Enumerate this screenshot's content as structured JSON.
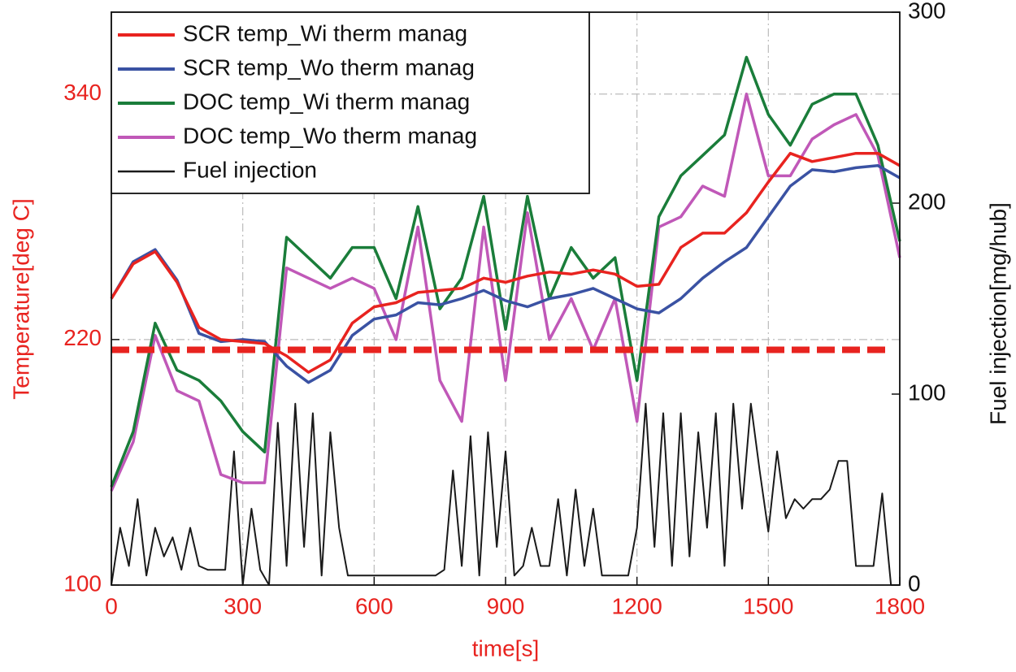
{
  "chart_data": {
    "type": "line",
    "x_label": "time[s]",
    "y_label": "Temperature[deg C]",
    "y2_label": "Fuel injection[mg/hub]",
    "xlim": [
      0,
      1800
    ],
    "xticks": [
      0,
      300,
      600,
      900,
      1200,
      1500,
      1800
    ],
    "ylim": [
      100,
      380
    ],
    "yticks": [
      100,
      220,
      340
    ],
    "y2lim": [
      0,
      300
    ],
    "y2ticks": [
      0,
      100,
      200,
      300
    ],
    "grid": true,
    "legend": "upper left",
    "reference_line": {
      "value": 215,
      "color": "#e8231f"
    },
    "x": [
      0,
      50,
      100,
      150,
      200,
      250,
      300,
      350,
      400,
      450,
      500,
      550,
      600,
      650,
      700,
      750,
      800,
      850,
      900,
      950,
      1000,
      1050,
      1100,
      1150,
      1200,
      1250,
      1300,
      1350,
      1400,
      1450,
      1500,
      1550,
      1600,
      1650,
      1700,
      1750,
      1800
    ],
    "series": [
      {
        "name": "SCR temp_Wi therm manag",
        "color": "#e8231f",
        "values": [
          240,
          257,
          263,
          248,
          226,
          220,
          219,
          218,
          212,
          204,
          210,
          228,
          236,
          238,
          243,
          244,
          245,
          250,
          248,
          251,
          253,
          252,
          254,
          252,
          246,
          247,
          265,
          272,
          272,
          282,
          297,
          311,
          307,
          309,
          311,
          311,
          305
        ]
      },
      {
        "name": "SCR temp_Wo therm manag",
        "color": "#3a52a3",
        "values": [
          240,
          258,
          264,
          249,
          223,
          219,
          220,
          219,
          207,
          199,
          205,
          222,
          230,
          232,
          238,
          237,
          240,
          244,
          239,
          236,
          240,
          242,
          245,
          240,
          235,
          233,
          240,
          250,
          258,
          265,
          280,
          295,
          303,
          302,
          304,
          305,
          299
        ]
      },
      {
        "name": "DOC temp_Wi therm manag",
        "color": "#1a7d3a",
        "values": [
          148,
          175,
          228,
          205,
          200,
          190,
          175,
          165,
          270,
          260,
          250,
          265,
          265,
          240,
          285,
          235,
          250,
          290,
          225,
          290,
          240,
          265,
          250,
          260,
          200,
          280,
          300,
          310,
          320,
          358,
          330,
          315,
          335,
          340,
          340,
          315,
          268
        ]
      },
      {
        "name": "DOC temp_Wo therm manag",
        "color": "#c058b8",
        "values": [
          146,
          170,
          222,
          195,
          190,
          154,
          150,
          150,
          255,
          250,
          245,
          250,
          245,
          220,
          275,
          200,
          180,
          275,
          200,
          282,
          220,
          240,
          215,
          240,
          180,
          275,
          280,
          295,
          290,
          340,
          300,
          300,
          318,
          325,
          330,
          310,
          260
        ]
      },
      {
        "name": "Fuel injection",
        "color": "#1a1a1a",
        "axis": "y2",
        "x": [
          0,
          20,
          40,
          60,
          80,
          100,
          120,
          140,
          160,
          180,
          200,
          220,
          240,
          260,
          280,
          300,
          320,
          340,
          360,
          380,
          400,
          420,
          440,
          460,
          480,
          500,
          520,
          540,
          560,
          580,
          600,
          620,
          640,
          660,
          680,
          700,
          720,
          740,
          760,
          780,
          800,
          820,
          840,
          860,
          880,
          900,
          920,
          940,
          960,
          980,
          1000,
          1020,
          1040,
          1060,
          1080,
          1100,
          1120,
          1140,
          1160,
          1180,
          1200,
          1220,
          1240,
          1260,
          1280,
          1300,
          1320,
          1340,
          1360,
          1380,
          1400,
          1420,
          1440,
          1460,
          1480,
          1500,
          1520,
          1540,
          1560,
          1580,
          1600,
          1620,
          1640,
          1660,
          1680,
          1700,
          1720,
          1740,
          1760,
          1780,
          1800
        ],
        "values": [
          0,
          30,
          10,
          45,
          5,
          30,
          15,
          25,
          8,
          30,
          10,
          8,
          8,
          8,
          70,
          0,
          40,
          8,
          0,
          85,
          10,
          95,
          20,
          90,
          5,
          80,
          30,
          5,
          5,
          5,
          5,
          5,
          5,
          5,
          5,
          5,
          5,
          5,
          8,
          60,
          10,
          78,
          5,
          80,
          20,
          70,
          5,
          10,
          30,
          10,
          10,
          45,
          5,
          50,
          10,
          40,
          5,
          5,
          5,
          5,
          30,
          95,
          20,
          90,
          10,
          90,
          15,
          80,
          30,
          90,
          10,
          95,
          40,
          95,
          60,
          28,
          70,
          35,
          45,
          40,
          45,
          45,
          50,
          65,
          65,
          10,
          10,
          10,
          48,
          0,
          0
        ]
      }
    ]
  }
}
